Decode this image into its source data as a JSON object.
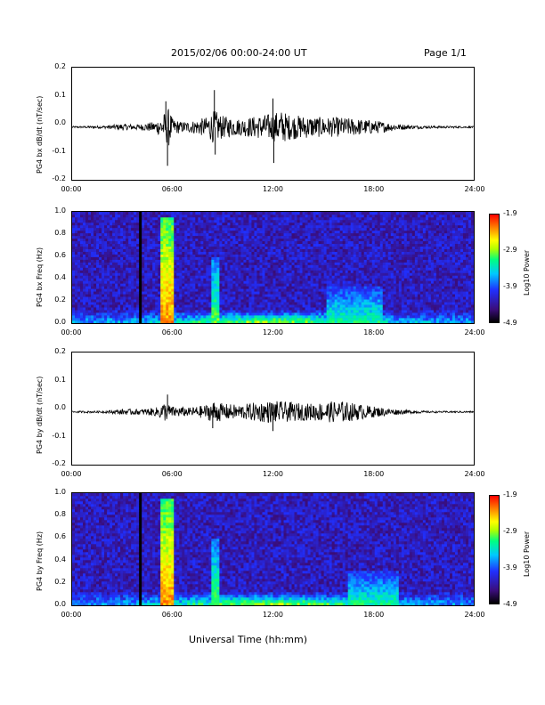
{
  "header": {
    "title": "2015/02/06  00:00-24:00 UT",
    "page": "Page 1/1"
  },
  "xlabel": "Universal Time (hh:mm)",
  "chart_data": [
    {
      "type": "line",
      "ylabel": "PG4 bx dB/dt (nT/sec)",
      "x_ticks": [
        "00:00",
        "06:00",
        "12:00",
        "18:00",
        "24:00"
      ],
      "y_ticks": [
        "0.2",
        "0.1",
        "0.0",
        "-0.1",
        "-0.2"
      ],
      "xlim": [
        0,
        24
      ],
      "ylim": [
        -0.2,
        0.2
      ],
      "envelope": {
        "hours": [
          0,
          2,
          3,
          4,
          5,
          5.5,
          5.8,
          6,
          6.5,
          7,
          8,
          8.5,
          9,
          10,
          11,
          12,
          12.5,
          13,
          14,
          15,
          16,
          17,
          18,
          19,
          20,
          21,
          22,
          24
        ],
        "amp": [
          0.003,
          0.005,
          0.012,
          0.01,
          0.02,
          0.05,
          0.07,
          0.03,
          0.02,
          0.02,
          0.035,
          0.06,
          0.04,
          0.03,
          0.04,
          0.05,
          0.06,
          0.045,
          0.04,
          0.035,
          0.035,
          0.03,
          0.025,
          0.015,
          0.008,
          0.005,
          0.004,
          0.003
        ]
      },
      "spikes": [
        {
          "hour": 5.6,
          "value": 0.08
        },
        {
          "hour": 5.7,
          "value": -0.15
        },
        {
          "hour": 8.5,
          "value": 0.12
        },
        {
          "hour": 8.55,
          "value": -0.11
        },
        {
          "hour": 12.0,
          "value": 0.09
        },
        {
          "hour": 12.05,
          "value": -0.14
        }
      ]
    },
    {
      "type": "heatmap",
      "ylabel": "PG4 bx Freq (Hz)",
      "x_ticks": [
        "00:00",
        "06:00",
        "12:00",
        "18:00",
        "24:00"
      ],
      "y_ticks": [
        "1.0",
        "0.8",
        "0.6",
        "0.4",
        "0.2",
        "0.0"
      ],
      "xlim": [
        0,
        24
      ],
      "ylim": [
        0,
        1
      ],
      "colorbar": {
        "label": "Log10 Power",
        "ticks": [
          "-1.9",
          "-2.9",
          "-3.9",
          "-4.9"
        ],
        "range": [
          -4.9,
          -1.9
        ]
      },
      "dark_gap_hour": 4.1,
      "features": [
        {
          "hour_start": 5.3,
          "hour_end": 6.0,
          "freq_top": 0.95,
          "level": -2.3
        },
        {
          "hour_start": 8.3,
          "hour_end": 8.8,
          "freq_top": 0.6,
          "level": -3.0
        },
        {
          "hour_start": 15.2,
          "hour_end": 18.5,
          "freq_top": 0.33,
          "level": -3.2
        }
      ]
    },
    {
      "type": "line",
      "ylabel": "PG4 by dB/dt (nT/sec)",
      "x_ticks": [
        "00:00",
        "06:00",
        "12:00",
        "18:00",
        "24:00"
      ],
      "y_ticks": [
        "0.2",
        "0.1",
        "0.0",
        "-0.1",
        "-0.2"
      ],
      "xlim": [
        0,
        24
      ],
      "ylim": [
        -0.2,
        0.2
      ],
      "envelope": {
        "hours": [
          0,
          2,
          3,
          4,
          5,
          5.5,
          6,
          7,
          8,
          8.5,
          9,
          10,
          11,
          12,
          13,
          14,
          15,
          16,
          17,
          18,
          19,
          20,
          21,
          22,
          24
        ],
        "amp": [
          0.003,
          0.004,
          0.01,
          0.01,
          0.015,
          0.035,
          0.02,
          0.015,
          0.025,
          0.04,
          0.03,
          0.025,
          0.035,
          0.04,
          0.035,
          0.03,
          0.035,
          0.04,
          0.03,
          0.02,
          0.012,
          0.007,
          0.004,
          0.003,
          0.003
        ]
      },
      "spikes": [
        {
          "hour": 5.7,
          "value": 0.05
        },
        {
          "hour": 8.4,
          "value": -0.07
        },
        {
          "hour": 12.0,
          "value": -0.08
        }
      ]
    },
    {
      "type": "heatmap",
      "ylabel": "PG4 by Freq (Hz)",
      "x_ticks": [
        "00:00",
        "06:00",
        "12:00",
        "18:00",
        "24:00"
      ],
      "y_ticks": [
        "1.0",
        "0.8",
        "0.6",
        "0.4",
        "0.2",
        "0.0"
      ],
      "xlim": [
        0,
        24
      ],
      "ylim": [
        0,
        1
      ],
      "colorbar": {
        "label": "Log10 Power",
        "ticks": [
          "-1.9",
          "-2.9",
          "-3.9",
          "-4.9"
        ],
        "range": [
          -4.9,
          -1.9
        ]
      },
      "dark_gap_hour": 4.1,
      "features": [
        {
          "hour_start": 5.3,
          "hour_end": 6.0,
          "freq_top": 0.95,
          "level": -2.3
        },
        {
          "hour_start": 8.3,
          "hour_end": 8.8,
          "freq_top": 0.6,
          "level": -3.0
        },
        {
          "hour_start": 16.5,
          "hour_end": 19.5,
          "freq_top": 0.3,
          "level": -3.2
        }
      ]
    }
  ]
}
